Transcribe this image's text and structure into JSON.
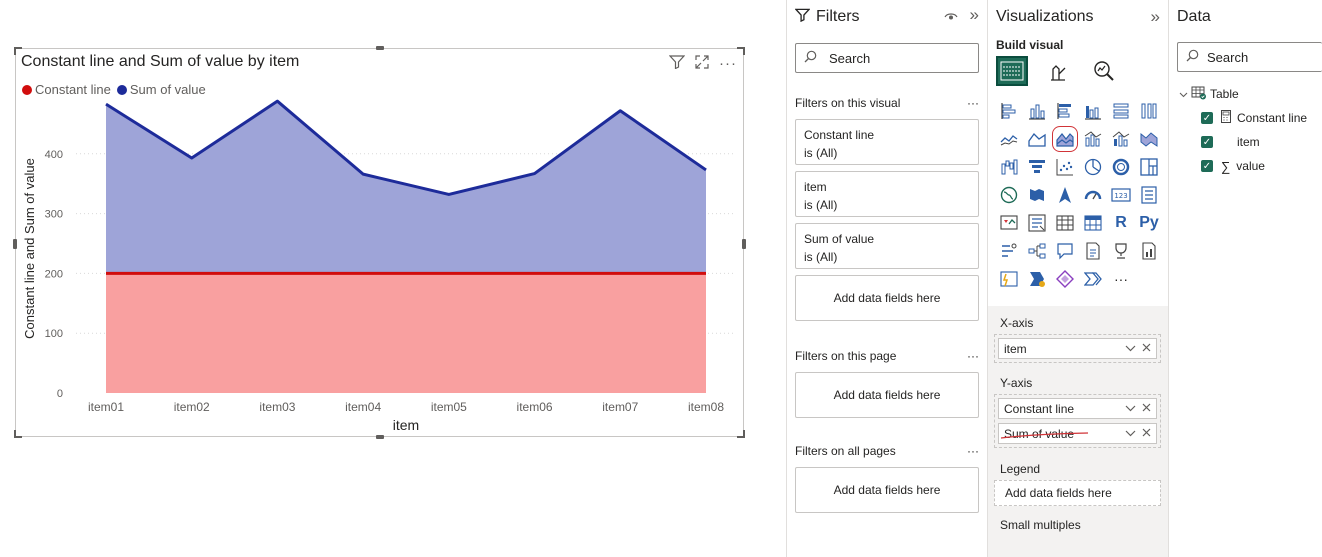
{
  "visual": {
    "title": "Constant line and Sum of value by item",
    "icons": [
      "filter-icon",
      "focus-mode-icon",
      "more-options-icon"
    ]
  },
  "chart_data": {
    "type": "area",
    "title": "Constant line and Sum of value by item",
    "categories": [
      "item01",
      "item02",
      "item03",
      "item04",
      "item05",
      "item06",
      "item07",
      "item08"
    ],
    "series": [
      {
        "name": "Constant line",
        "values": [
          200,
          200,
          200,
          200,
          200,
          200,
          200,
          200
        ],
        "color": "#d10d0d",
        "fill": "#f9a0a0"
      },
      {
        "name": "Sum of value",
        "values": [
          483,
          393,
          488,
          366,
          332,
          367,
          472,
          373
        ],
        "color": "#1d2b9a",
        "fill": "#9ea4d8"
      }
    ],
    "xlabel": "item",
    "ylabel": "Constant line and Sum of value",
    "yticks": [
      0,
      100,
      200,
      300,
      400
    ],
    "ylim": [
      0,
      500
    ],
    "grid": true,
    "legend": "top-left"
  },
  "filters": {
    "title": "Filters",
    "search_placeholder": "Search",
    "on_visual_label": "Filters on this visual",
    "cards": [
      {
        "name": "Constant line",
        "state": "is (All)"
      },
      {
        "name": "item",
        "state": "is (All)"
      },
      {
        "name": "Sum of value",
        "state": "is (All)"
      }
    ],
    "add_fields": "Add data fields here",
    "on_page_label": "Filters on this page",
    "on_all_pages_label": "Filters on all pages"
  },
  "visualizations": {
    "title": "Visualizations",
    "build_visual": "Build visual",
    "xaxis_label": "X-axis",
    "xaxis_field": "item",
    "yaxis_label": "Y-axis",
    "yaxis_fields": [
      "Constant line",
      "Sum of value"
    ],
    "legend_label": "Legend",
    "legend_placeholder": "Add data fields here",
    "small_multiples_label": "Small multiples",
    "more_glyph": "···",
    "r_label": "R",
    "py_label": "Py"
  },
  "data": {
    "title": "Data",
    "search_placeholder": "Search",
    "table_name": "Table",
    "fields": [
      "Constant line",
      "item",
      "value"
    ]
  },
  "dots": "···",
  "expand_glyph": "»",
  "selected_icon_color": "#d13438"
}
